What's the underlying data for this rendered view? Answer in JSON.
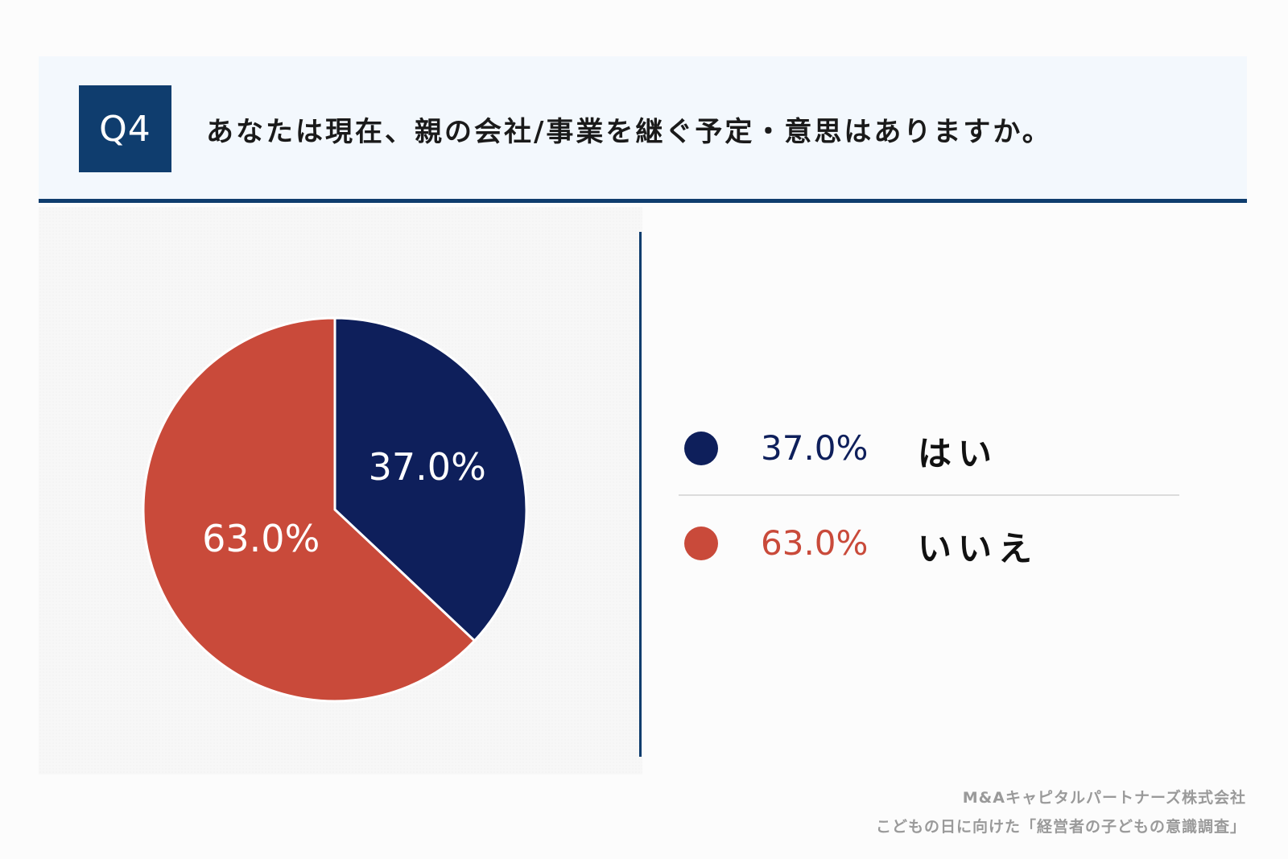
{
  "header": {
    "badge": "Q4",
    "question": "あなたは現在、親の会社/事業を継ぐ予定・意思はありますか。"
  },
  "colors": {
    "navy": "#0e1f5b",
    "red": "#c94a3a",
    "header_bg": "#f3f8fd",
    "accent": "#0f3d6e"
  },
  "chart_data": {
    "type": "pie",
    "categories": [
      "はい",
      "いいえ"
    ],
    "values": [
      37.0,
      63.0
    ],
    "labels": [
      "37.0%",
      "63.0%"
    ],
    "colors": [
      "#0e1f5b",
      "#c94a3a"
    ],
    "legend_placement": "right"
  },
  "legend": {
    "items": [
      {
        "value": "37.0%",
        "label": "はい",
        "color": "#0e1f5b"
      },
      {
        "value": "63.0%",
        "label": "いいえ",
        "color": "#c94a3a"
      }
    ]
  },
  "footer": {
    "company": "M&Aキャピタルパートナーズ株式会社",
    "survey": "こどもの日に向けた「経営者の子どもの意識調査」"
  }
}
